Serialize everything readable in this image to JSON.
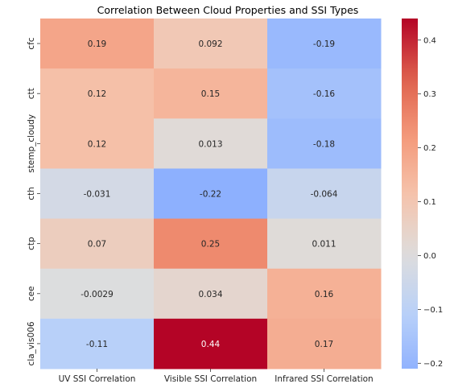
{
  "chart_data": {
    "type": "heatmap",
    "title": "Correlation Between Cloud Properties and SSI Types",
    "columns": [
      "UV SSI Correlation",
      "Visible SSI Correlation",
      "Infrared SSI Correlation"
    ],
    "rows": [
      "cfc",
      "ctt",
      "stemp_cloudy",
      "cth",
      "ctp",
      "cee",
      "cla_vis006"
    ],
    "values": [
      [
        0.19,
        0.092,
        -0.19
      ],
      [
        0.12,
        0.15,
        -0.16
      ],
      [
        0.12,
        0.013,
        -0.18
      ],
      [
        -0.031,
        -0.22,
        -0.064
      ],
      [
        0.07,
        0.25,
        0.011
      ],
      [
        -0.0029,
        0.034,
        0.16
      ],
      [
        -0.11,
        0.44,
        0.17
      ]
    ],
    "annotations": [
      [
        "0.19",
        "0.092",
        "-0.19"
      ],
      [
        "0.12",
        "0.15",
        "-0.16"
      ],
      [
        "0.12",
        "0.013",
        "-0.18"
      ],
      [
        "-0.031",
        "-0.22",
        "-0.064"
      ],
      [
        "0.07",
        "0.25",
        "0.011"
      ],
      [
        "-0.0029",
        "0.034",
        "0.16"
      ],
      [
        "-0.11",
        "0.44",
        "0.17"
      ]
    ],
    "colormap": "coolwarm",
    "color_range": [
      -0.21,
      0.44
    ],
    "color_center": 0,
    "colorbar_ticks": [
      "−0.2",
      "−0.1",
      "0.0",
      "0.1",
      "0.2",
      "0.3",
      "0.4"
    ],
    "colorbar_tick_values": [
      -0.2,
      -0.1,
      0.0,
      0.1,
      0.2,
      0.3,
      0.4
    ]
  }
}
